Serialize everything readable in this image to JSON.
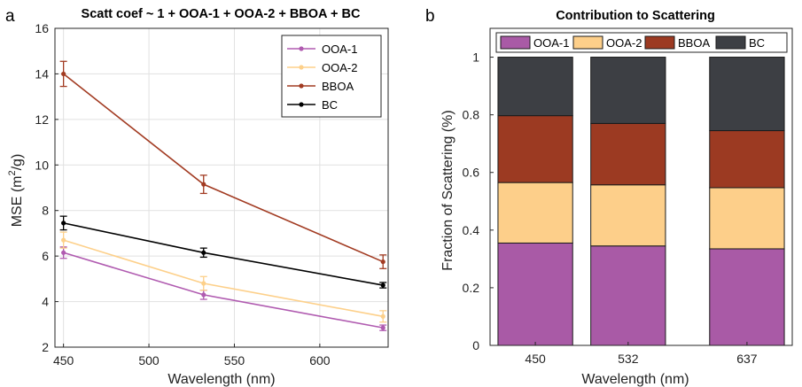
{
  "panels": {
    "a": "a",
    "b": "b"
  },
  "chart_data": [
    {
      "type": "line",
      "title": "Scatt coef ~ 1 + OOA-1 + OOA-2 + BBOA + BC",
      "xlabel": "Wavelength (nm)",
      "ylabel_main": "MSE (m",
      "ylabel_sup": "2",
      "ylabel_end": "/g)",
      "xlim": [
        445,
        640
      ],
      "ylim": [
        2,
        16
      ],
      "x_ticks": [
        450,
        500,
        550,
        600
      ],
      "y_ticks": [
        2,
        4,
        6,
        8,
        10,
        12,
        14,
        16
      ],
      "grid": true,
      "legend_position": "top-right",
      "x": [
        450,
        532,
        637
      ],
      "series": [
        {
          "name": "OOA-1",
          "color": "#b05bb0",
          "values": [
            6.15,
            4.3,
            2.85
          ],
          "errors": [
            0.25,
            0.2,
            0.12
          ]
        },
        {
          "name": "OOA-2",
          "color": "#fdd08a",
          "values": [
            6.7,
            4.8,
            3.35
          ],
          "errors": [
            0.35,
            0.3,
            0.25
          ]
        },
        {
          "name": "BBOA",
          "color": "#a23b22",
          "values": [
            14.0,
            9.15,
            5.75
          ],
          "errors": [
            0.55,
            0.4,
            0.3
          ]
        },
        {
          "name": "BC",
          "color": "#000000",
          "values": [
            7.45,
            6.15,
            4.72
          ],
          "errors": [
            0.3,
            0.2,
            0.12
          ]
        }
      ]
    },
    {
      "type": "bar",
      "stacked": true,
      "title": "Contribution to Scattering",
      "xlabel": "Wavelength (nm)",
      "ylabel": "Fraction of Scattering (%)",
      "ylim": [
        0,
        1.1
      ],
      "y_ticks": [
        0,
        0.2,
        0.4,
        0.6,
        0.8,
        1
      ],
      "y_tick_labels": [
        "0",
        "0.2",
        "0.4",
        "0.6",
        "0.8",
        "1"
      ],
      "categories": [
        "450",
        "532",
        "637"
      ],
      "category_positions": [
        450,
        532,
        637
      ],
      "xlim": [
        410,
        677
      ],
      "bar_width": 66,
      "grid": false,
      "legend_position": "top",
      "series": [
        {
          "name": "OOA-1",
          "color": "#a95aa6",
          "values": [
            0.355,
            0.345,
            0.335
          ]
        },
        {
          "name": "OOA-2",
          "color": "#fdcf8a",
          "values": [
            0.21,
            0.212,
            0.212
          ]
        },
        {
          "name": "BBOA",
          "color": "#9c3a22",
          "values": [
            0.232,
            0.213,
            0.198
          ]
        },
        {
          "name": "BC",
          "color": "#3d3f44",
          "values": [
            0.203,
            0.23,
            0.255
          ]
        }
      ]
    }
  ]
}
